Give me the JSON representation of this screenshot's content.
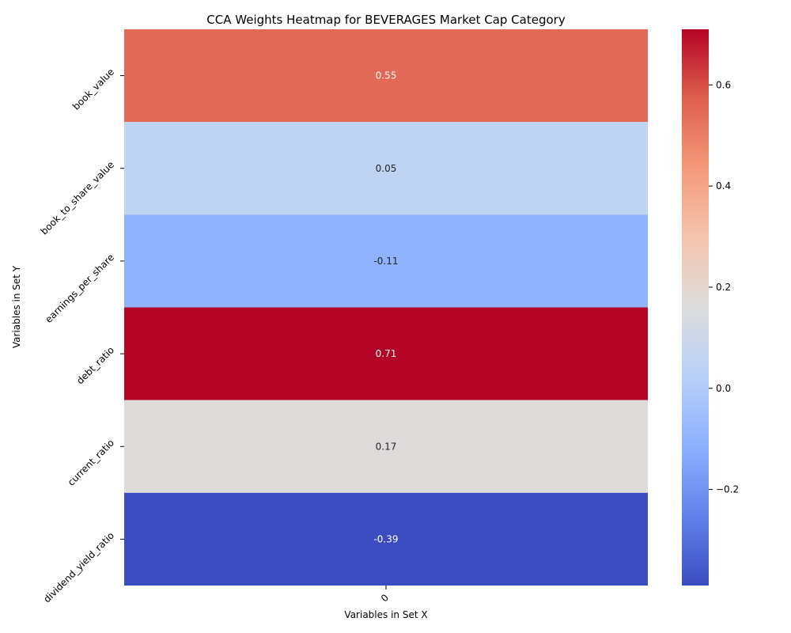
{
  "chart_data": {
    "type": "heatmap",
    "title": "CCA Weights Heatmap for BEVERAGES Market Cap Category",
    "xlabel": "Variables in Set X",
    "ylabel": "Variables in Set Y",
    "x_categories": [
      "0"
    ],
    "y_categories": [
      "book_value",
      "book_to_share_value",
      "earnings_per_share",
      "debt_ratio",
      "current_ratio",
      "dividend_yield_ratio"
    ],
    "values": [
      [
        0.55
      ],
      [
        0.05
      ],
      [
        -0.11
      ],
      [
        0.71
      ],
      [
        0.17
      ],
      [
        -0.39
      ]
    ],
    "value_labels": [
      "0.55",
      "0.05",
      "-0.11",
      "0.71",
      "0.17",
      "-0.39"
    ],
    "colormap": "coolwarm",
    "colorbar": {
      "min": -0.39,
      "max": 0.71,
      "ticks": [
        -0.2,
        0.0,
        0.2,
        0.4,
        0.6
      ],
      "tick_labels": [
        "−0.2",
        "0.0",
        "0.2",
        "0.4",
        "0.6"
      ]
    },
    "colors": {
      "low": "#3b4cc0",
      "mid": "#dddddd",
      "high": "#b40426"
    }
  }
}
